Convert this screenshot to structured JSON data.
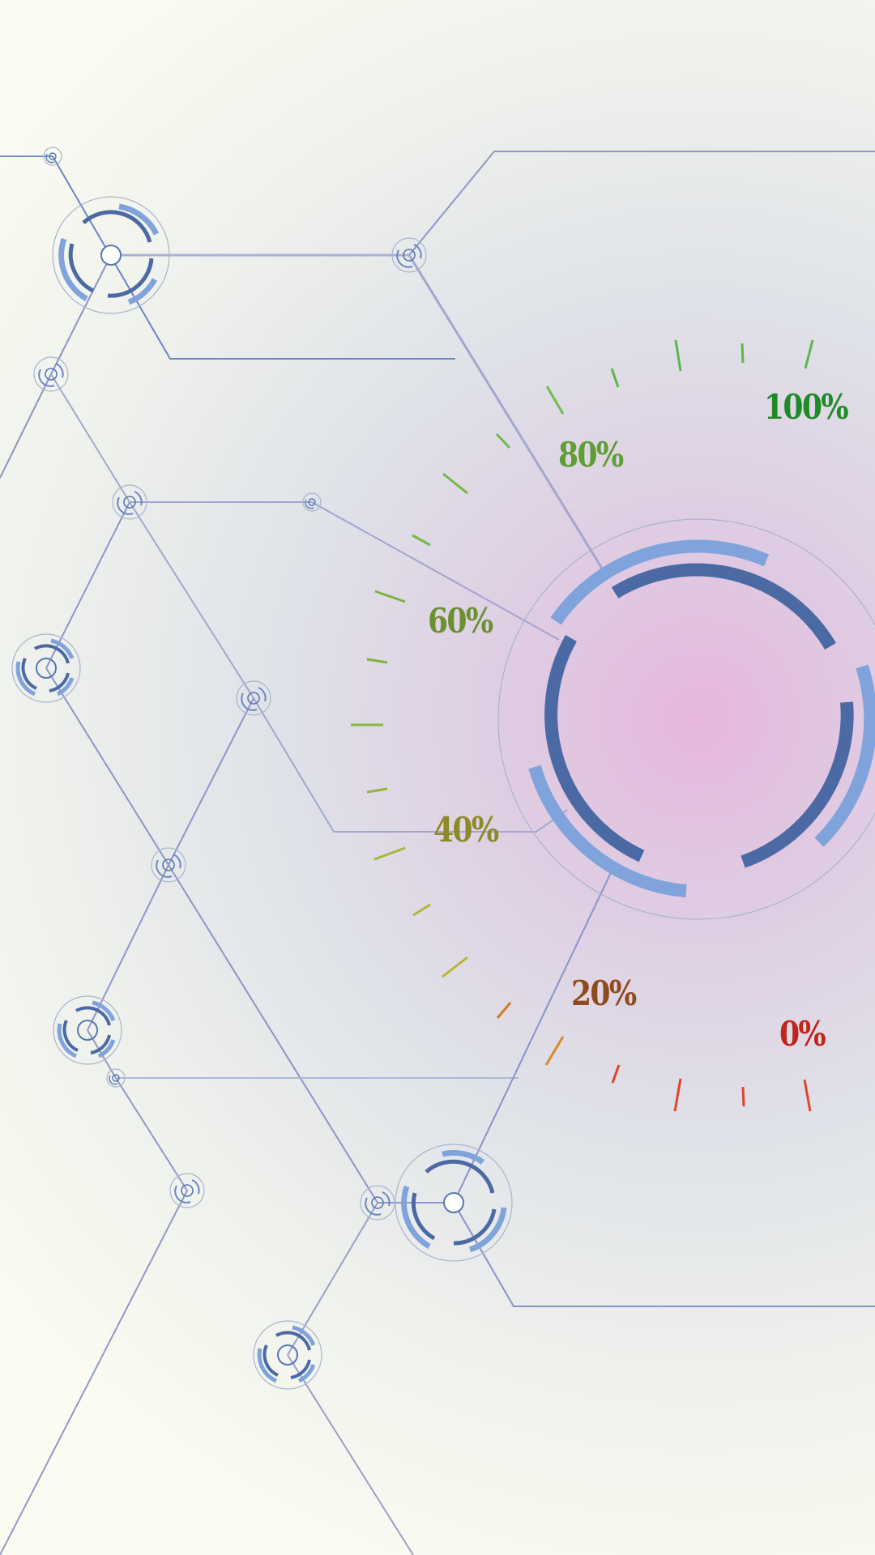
{
  "gauge": {
    "labels": [
      {
        "text": "0%",
        "color": "#c0251b"
      },
      {
        "text": "20%",
        "color": "#8f4a1e"
      },
      {
        "text": "40%",
        "color": "#8d8a25"
      },
      {
        "text": "60%",
        "color": "#6b9032"
      },
      {
        "text": "80%",
        "color": "#5e9e34"
      },
      {
        "text": "100%",
        "color": "#1f8a2a"
      }
    ]
  },
  "colors": {
    "network_line": "#7b8fc8",
    "ring_dark": "#4b6aa4",
    "ring_light": "#80a3dc",
    "ring_outline": "#a8b4cf"
  }
}
